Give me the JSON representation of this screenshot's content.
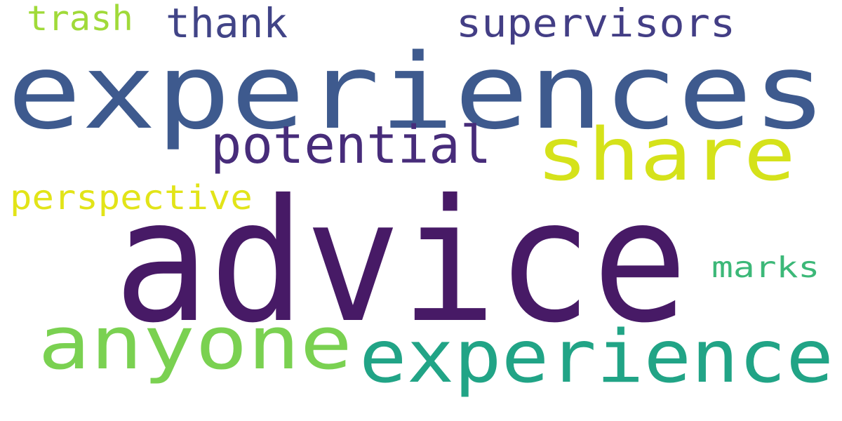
{
  "words": [
    {
      "text": "experiences",
      "color": "#3e5a8e"
    },
    {
      "text": "advice",
      "color": "#471a66"
    },
    {
      "text": "share",
      "color": "#d5e21a"
    },
    {
      "text": "experience",
      "color": "#21a486"
    },
    {
      "text": "anyone",
      "color": "#7ad151"
    },
    {
      "text": "potential",
      "color": "#472c7a"
    },
    {
      "text": "supervisors",
      "color": "#433e85"
    },
    {
      "text": "thank",
      "color": "#414487"
    },
    {
      "text": "trash",
      "color": "#a0da39"
    },
    {
      "text": "perspective",
      "color": "#e2e418"
    },
    {
      "text": "marks",
      "color": "#3cb878"
    }
  ]
}
